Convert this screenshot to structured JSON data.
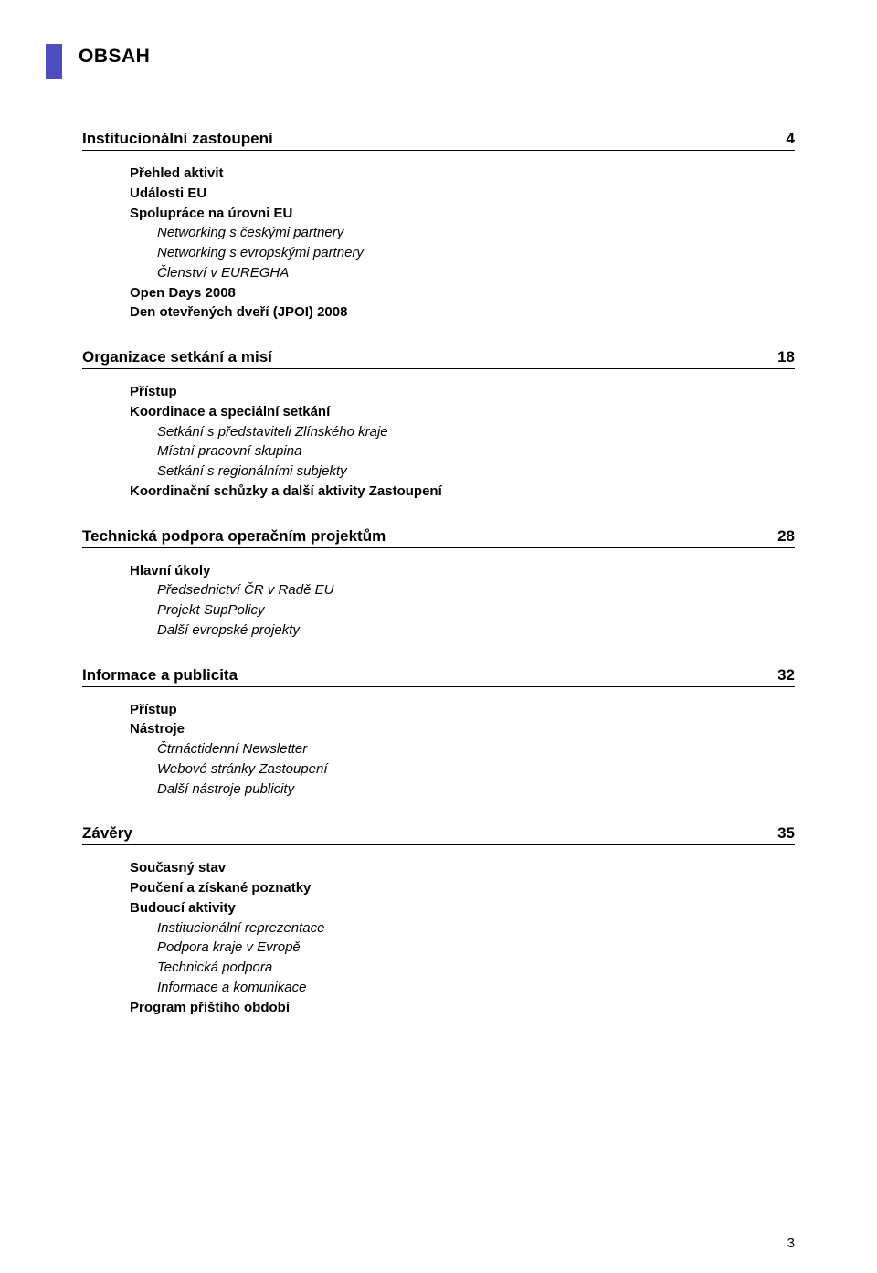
{
  "heading": "OBSAH",
  "footer_page": "3",
  "sections": [
    {
      "title": "Institucionální zastoupení",
      "page": "4",
      "items": [
        {
          "text": "Přehled aktivit",
          "style": "bold"
        },
        {
          "text": "Události EU",
          "style": "bold"
        },
        {
          "text": "Spolupráce na úrovni EU",
          "style": "bold"
        },
        {
          "text": "Networking s českými partnery",
          "style": "italic indent"
        },
        {
          "text": "Networking s evropskými partnery",
          "style": "italic indent"
        },
        {
          "text": "Členství v EUREGHA",
          "style": "italic indent"
        },
        {
          "text": "Open Days 2008",
          "style": "bold"
        },
        {
          "text": "Den otevřených dveří (JPOI) 2008",
          "style": "bold"
        }
      ]
    },
    {
      "title": "Organizace setkání a misí",
      "page": "18",
      "items": [
        {
          "text": "Přístup",
          "style": "bold"
        },
        {
          "text": "Koordinace a speciální setkání",
          "style": "bold"
        },
        {
          "text": "Setkání s představiteli Zlínského kraje",
          "style": "italic indent"
        },
        {
          "text": "Místní pracovní skupina",
          "style": "italic indent"
        },
        {
          "text": "Setkání s regionálními subjekty",
          "style": "italic indent"
        },
        {
          "text": "Koordinační schůzky a další aktivity Zastoupení",
          "style": "bold"
        }
      ]
    },
    {
      "title": "Technická podpora operačním projektům",
      "page": "28",
      "items": [
        {
          "text": "Hlavní úkoly",
          "style": "bold"
        },
        {
          "text": "Předsednictví ČR v Radě EU",
          "style": "italic indent"
        },
        {
          "text": "Projekt SupPolicy",
          "style": "italic indent"
        },
        {
          "text": "Další evropské projekty",
          "style": "italic indent"
        }
      ]
    },
    {
      "title": "Informace a publicita",
      "page": "32",
      "items": [
        {
          "text": "Přístup",
          "style": "bold"
        },
        {
          "text": "Nástroje",
          "style": "bold"
        },
        {
          "text": "Čtrnáctidenní Newsletter",
          "style": "italic indent"
        },
        {
          "text": "Webové stránky Zastoupení",
          "style": "italic indent"
        },
        {
          "text": "Další nástroje publicity",
          "style": "italic indent"
        }
      ]
    },
    {
      "title": "Závěry",
      "page": "35",
      "items": [
        {
          "text": "Současný stav",
          "style": "bold"
        },
        {
          "text": "Poučení a získané poznatky",
          "style": "bold"
        },
        {
          "text": "Budoucí aktivity",
          "style": "bold"
        },
        {
          "text": "Institucionální reprezentace",
          "style": "italic indent"
        },
        {
          "text": "Podpora kraje v Evropě",
          "style": "italic indent"
        },
        {
          "text": "Technická podpora",
          "style": "italic indent"
        },
        {
          "text": "Informace a komunikace",
          "style": "italic indent"
        },
        {
          "text": "Program příštího období",
          "style": "bold"
        }
      ]
    }
  ]
}
